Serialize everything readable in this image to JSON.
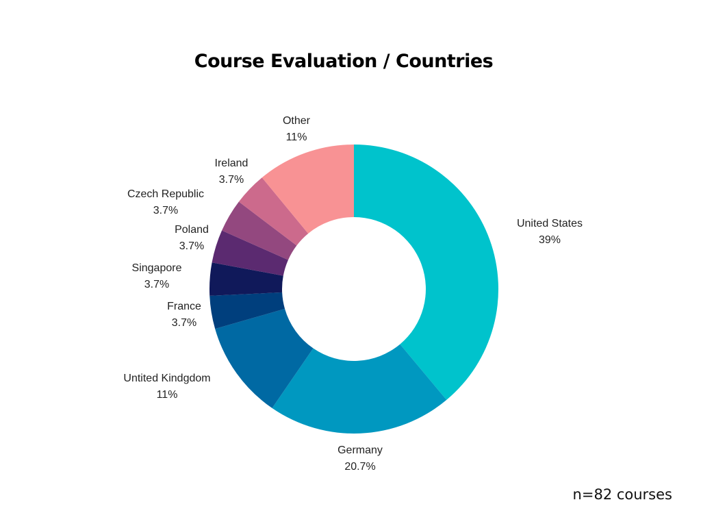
{
  "chart_data": {
    "type": "pie",
    "donut": true,
    "title": "Course Evaluation / Countries",
    "note": "n=82 courses",
    "slices": [
      {
        "label": "United States",
        "value": 39,
        "display": "39%",
        "color": "#00c3cc"
      },
      {
        "label": "Germany",
        "value": 20.7,
        "display": "20.7%",
        "color": "#0098c0"
      },
      {
        "label": "Untited Kindgdom",
        "value": 11,
        "display": "11%",
        "color": "#0069a3"
      },
      {
        "label": "France",
        "value": 3.7,
        "display": "3.7%",
        "color": "#003f7d"
      },
      {
        "label": "Singapore",
        "value": 3.7,
        "display": "3.7%",
        "color": "#10195a"
      },
      {
        "label": "Poland",
        "value": 3.7,
        "display": "3.7%",
        "color": "#5b2a70"
      },
      {
        "label": "Czech Republic",
        "value": 3.7,
        "display": "3.7%",
        "color": "#93487f"
      },
      {
        "label": "Ireland",
        "value": 3.7,
        "display": "3.7%",
        "color": "#cc6a8c"
      },
      {
        "label": "Other",
        "value": 11,
        "display": "11%",
        "color": "#f89294"
      }
    ]
  }
}
